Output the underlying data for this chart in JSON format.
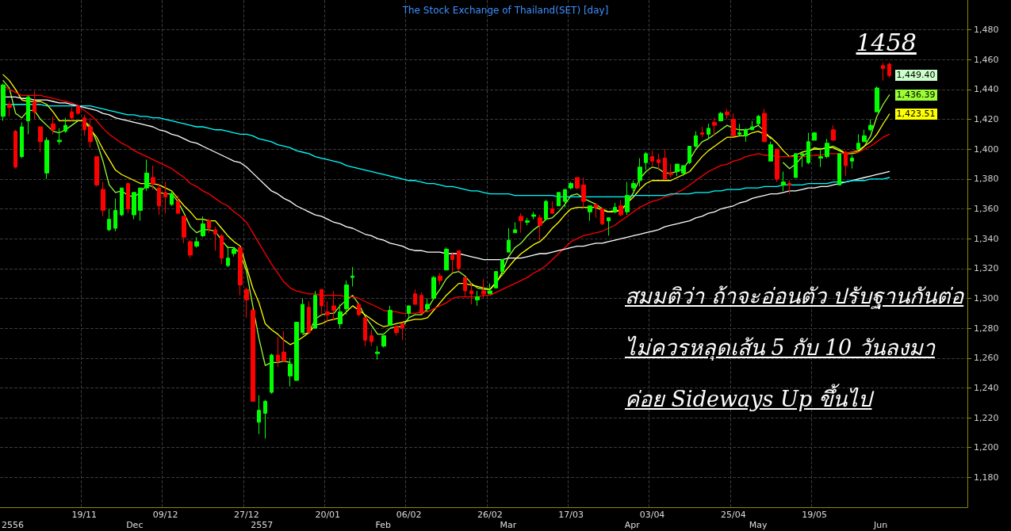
{
  "chart_data": {
    "type": "candlestick",
    "title": "The Stock Exchange of Thailand(SET) [day]",
    "categories": [
      null,
      null,
      null,
      null,
      null,
      null,
      null,
      null,
      null,
      null,
      null,
      null,
      null,
      "19/11",
      null,
      null,
      null,
      null,
      null,
      null,
      null,
      null,
      null,
      null,
      null,
      null,
      "09/12",
      null,
      null,
      null,
      null,
      null,
      null,
      null,
      null,
      null,
      null,
      null,
      null,
      "27/12",
      null,
      null,
      null,
      null,
      null,
      null,
      null,
      null,
      null,
      null,
      null,
      null,
      "20/01",
      null,
      null,
      null,
      null,
      null,
      null,
      null,
      null,
      null,
      null,
      null,
      null,
      "06/02",
      null,
      null,
      null,
      null,
      null,
      null,
      null,
      null,
      null,
      null,
      null,
      null,
      "26/02",
      null,
      null,
      null,
      null,
      null,
      null,
      null,
      null,
      null,
      null,
      null,
      null,
      "17/03",
      null,
      null,
      null,
      null,
      null,
      null,
      null,
      null,
      null,
      null,
      null,
      null,
      "03/04",
      null,
      null,
      null,
      null,
      null,
      null,
      null,
      null,
      null,
      null,
      null,
      null,
      "25/04",
      null,
      null,
      null,
      null,
      null,
      null,
      null,
      null,
      null,
      null,
      null,
      null,
      "19/05",
      null,
      null,
      null,
      null,
      null,
      null,
      null,
      null,
      null,
      null,
      null,
      null
    ],
    "ohlc": [
      [
        1422,
        1444,
        1419,
        1443
      ],
      [
        1430,
        1432,
        1422,
        1428
      ],
      [
        1412,
        1413,
        1387,
        1388
      ],
      [
        1395,
        1418,
        1394,
        1415
      ],
      [
        1419,
        1436,
        1410,
        1435
      ],
      [
        1432,
        1439,
        1420,
        1425
      ],
      [
        1415,
        1415,
        1398,
        1405
      ],
      [
        1384,
        1408,
        1380,
        1406
      ],
      [
        1417,
        1422,
        1410,
        1413
      ],
      [
        1405,
        1414,
        1403,
        1406
      ],
      [
        1412,
        1421,
        1411,
        1416
      ],
      [
        1425,
        1428,
        1419,
        1421
      ],
      [
        1429,
        1430,
        1423,
        1424
      ],
      [
        1421,
        1423,
        1409,
        1413
      ],
      [
        1415,
        1421,
        1401,
        1405
      ],
      [
        1395,
        1395,
        1375,
        1376
      ],
      [
        1373,
        1378,
        1355,
        1359
      ],
      [
        1346,
        1360,
        1345,
        1353
      ],
      [
        1347,
        1367,
        1345,
        1359
      ],
      [
        1356,
        1374,
        1355,
        1374
      ],
      [
        1377,
        1377,
        1357,
        1360
      ],
      [
        1356,
        1371,
        1353,
        1371
      ],
      [
        1359,
        1374,
        1352,
        1374
      ],
      [
        1374,
        1393,
        1372,
        1384
      ],
      [
        1381,
        1389,
        1373,
        1377
      ],
      [
        1374,
        1377,
        1356,
        1362
      ],
      [
        1371,
        1378,
        1357,
        1368
      ],
      [
        1363,
        1372,
        1362,
        1370
      ],
      [
        1365,
        1369,
        1357,
        1357
      ],
      [
        1355,
        1355,
        1337,
        1341
      ],
      [
        1338,
        1339,
        1327,
        1329
      ],
      [
        1335,
        1341,
        1334,
        1338
      ],
      [
        1342,
        1355,
        1341,
        1350
      ],
      [
        1352,
        1353,
        1344,
        1347
      ],
      [
        1346,
        1348,
        1332,
        1343
      ],
      [
        1342,
        1343,
        1323,
        1327
      ],
      [
        1322,
        1335,
        1321,
        1327
      ],
      [
        1330,
        1334,
        1328,
        1333
      ],
      [
        1334,
        1334,
        1302,
        1309
      ],
      [
        1306,
        1307,
        1287,
        1299
      ],
      [
        1292,
        1294,
        1231,
        1231
      ],
      [
        1217,
        1235,
        1209,
        1225
      ],
      [
        1223,
        1232,
        1206,
        1231
      ],
      [
        1237,
        1263,
        1236,
        1262
      ],
      [
        1262,
        1274,
        1254,
        1258
      ],
      [
        1264,
        1278,
        1258,
        1258
      ],
      [
        1248,
        1260,
        1241,
        1256
      ],
      [
        1245,
        1284,
        1245,
        1284
      ],
      [
        1277,
        1300,
        1277,
        1296
      ],
      [
        1294,
        1298,
        1277,
        1277
      ],
      [
        1280,
        1305,
        1280,
        1302
      ],
      [
        1306,
        1306,
        1288,
        1295
      ],
      [
        1291,
        1298,
        1284,
        1289
      ],
      [
        1295,
        1305,
        1285,
        1292
      ],
      [
        1283,
        1296,
        1280,
        1291
      ],
      [
        1293,
        1312,
        1289,
        1309
      ],
      [
        1314,
        1321,
        1308,
        1315
      ],
      [
        1296,
        1297,
        1288,
        1289
      ],
      [
        1287,
        1287,
        1268,
        1272
      ],
      [
        1275,
        1279,
        1268,
        1271
      ],
      [
        1263,
        1268,
        1259,
        1264
      ],
      [
        1268,
        1275,
        1267,
        1275
      ],
      [
        1282,
        1295,
        1282,
        1292
      ],
      [
        1281,
        1282,
        1275,
        1277
      ],
      [
        1283,
        1283,
        1272,
        1280
      ],
      [
        1290,
        1295,
        1286,
        1295
      ],
      [
        1303,
        1306,
        1296,
        1296
      ],
      [
        1302,
        1304,
        1290,
        1290
      ],
      [
        1293,
        1300,
        1291,
        1296
      ],
      [
        1300,
        1315,
        1300,
        1314
      ],
      [
        1315,
        1317,
        1309,
        1312
      ],
      [
        1319,
        1334,
        1319,
        1333
      ],
      [
        1329,
        1331,
        1317,
        1326
      ],
      [
        1332,
        1332,
        1318,
        1320
      ],
      [
        1314,
        1314,
        1301,
        1305
      ],
      [
        1305,
        1310,
        1296,
        1303
      ],
      [
        1299,
        1305,
        1295,
        1301
      ],
      [
        1305,
        1313,
        1300,
        1303
      ],
      [
        1303,
        1310,
        1303,
        1305
      ],
      [
        1307,
        1318,
        1307,
        1318
      ],
      [
        1318,
        1326,
        1315,
        1326
      ],
      [
        1331,
        1347,
        1331,
        1339
      ],
      [
        1344,
        1351,
        1344,
        1346
      ],
      [
        1355,
        1357,
        1344,
        1352
      ],
      [
        1351,
        1354,
        1349,
        1352
      ],
      [
        1355,
        1358,
        1353,
        1356
      ],
      [
        1354,
        1356,
        1339,
        1349
      ],
      [
        1353,
        1366,
        1353,
        1365
      ],
      [
        1360,
        1365,
        1357,
        1357
      ],
      [
        1362,
        1371,
        1362,
        1371
      ],
      [
        1365,
        1373,
        1361,
        1373
      ],
      [
        1374,
        1378,
        1373,
        1377
      ],
      [
        1381,
        1381,
        1373,
        1374
      ],
      [
        1376,
        1381,
        1361,
        1365
      ],
      [
        1358,
        1362,
        1352,
        1362
      ],
      [
        1363,
        1364,
        1354,
        1361
      ],
      [
        1360,
        1361,
        1349,
        1350
      ],
      [
        1352,
        1354,
        1342,
        1354
      ],
      [
        1358,
        1364,
        1357,
        1361
      ],
      [
        1362,
        1366,
        1355,
        1356
      ],
      [
        1358,
        1378,
        1356,
        1369
      ],
      [
        1374,
        1379,
        1372,
        1377
      ],
      [
        1379,
        1394,
        1375,
        1388
      ],
      [
        1391,
        1398,
        1386,
        1397
      ],
      [
        1395,
        1399,
        1388,
        1392
      ],
      [
        1393,
        1397,
        1386,
        1391
      ],
      [
        1394,
        1400,
        1380,
        1380
      ],
      [
        1384,
        1390,
        1381,
        1383
      ],
      [
        1385,
        1390,
        1382,
        1390
      ],
      [
        1384,
        1389,
        1382,
        1389
      ],
      [
        1391,
        1402,
        1390,
        1402
      ],
      [
        1402,
        1412,
        1401,
        1409
      ],
      [
        1411,
        1415,
        1408,
        1410
      ],
      [
        1410,
        1417,
        1407,
        1414
      ],
      [
        1418,
        1421,
        1409,
        1416
      ],
      [
        1419,
        1425,
        1419,
        1424
      ],
      [
        1425,
        1427,
        1420,
        1423
      ],
      [
        1420,
        1424,
        1409,
        1409
      ],
      [
        1410,
        1417,
        1409,
        1411
      ],
      [
        1409,
        1414,
        1405,
        1413
      ],
      [
        1413,
        1419,
        1413,
        1415
      ],
      [
        1417,
        1423,
        1416,
        1422
      ],
      [
        1424,
        1427,
        1405,
        1405
      ],
      [
        1392,
        1405,
        1392,
        1403
      ],
      [
        1400,
        1400,
        1378,
        1380
      ],
      [
        1376,
        1385,
        1372,
        1378
      ],
      [
        1377,
        1379,
        1370,
        1376
      ],
      [
        1381,
        1397,
        1381,
        1397
      ],
      [
        1396,
        1398,
        1388,
        1397
      ],
      [
        1391,
        1411,
        1390,
        1405
      ],
      [
        1406,
        1411,
        1406,
        1411
      ],
      [
        1394,
        1401,
        1388,
        1395
      ],
      [
        1395,
        1407,
        1394,
        1404
      ],
      [
        1413,
        1416,
        1406,
        1406
      ],
      [
        1376,
        1397,
        1376,
        1397
      ],
      [
        1398,
        1399,
        1382,
        1389
      ],
      [
        1392,
        1396,
        1387,
        1394
      ],
      [
        1400,
        1410,
        1400,
        1404
      ],
      [
        1405,
        1413,
        1405,
        1409
      ],
      [
        1413,
        1420,
        1412,
        1416
      ],
      [
        1425,
        1442,
        1425,
        1441
      ],
      [
        1456,
        1458,
        1446,
        1454
      ],
      [
        1457,
        1458,
        1448,
        1449.4
      ]
    ],
    "value_labels": [
      null,
      null,
      null,
      null,
      null,
      null,
      null,
      null,
      null,
      null,
      null,
      null,
      null,
      null,
      null,
      null,
      null,
      null,
      null,
      null,
      null,
      null,
      null,
      null,
      null,
      null,
      null,
      null,
      null,
      null,
      null,
      null,
      null,
      null,
      null,
      null,
      null,
      null,
      null,
      null,
      null,
      null,
      null,
      null,
      null,
      null,
      null,
      null,
      null,
      null,
      null,
      null,
      null,
      null,
      null,
      null,
      null,
      null,
      null,
      null,
      null,
      null,
      null,
      null,
      null,
      null,
      null,
      null,
      null,
      null,
      null,
      null,
      null,
      null,
      null,
      null,
      null,
      null,
      null,
      null,
      null,
      null,
      null,
      null,
      null,
      null,
      null,
      null,
      null,
      null,
      null,
      null,
      null,
      null,
      null,
      null,
      null,
      null,
      null,
      null,
      null,
      null,
      null,
      null,
      null,
      null,
      null,
      null,
      null,
      null,
      null,
      null,
      null,
      null,
      null,
      null,
      null,
      null,
      null,
      null,
      null,
      null,
      null,
      null,
      null,
      null,
      null,
      null,
      null,
      null,
      null,
      null,
      null,
      null,
      null,
      null,
      null,
      null,
      null,
      null,
      null,
      null,
      "1,449.40"
    ],
    "series": [
      {
        "type": "line",
        "color": "#99ff33",
        "values": [
          1446,
          1441,
          1424,
          1421,
          1426,
          1426,
          1420,
          1416,
          1412,
          1411,
          1413,
          1416,
          1419,
          1419,
          1415,
          1405,
          1392,
          1376,
          1371,
          1372,
          1369,
          1368,
          1371,
          1376,
          1375,
          1371,
          1370,
          1370,
          1365,
          1357,
          1348,
          1344,
          1346,
          1346,
          1345,
          1339,
          1334,
          1334,
          1330,
          1318,
          1295,
          1273,
          1255,
          1257,
          1257,
          1258,
          1257,
          null,
          1276,
          1277,
          1286,
          1289,
          1290,
          1290,
          1295,
          1299,
          1302,
          1296,
          1288,
          1282,
          1276,
          1276,
          1280,
          1281,
          1281,
          1287,
          1289,
          1289,
          1293,
          1300,
          1306,
          1313,
          1317,
          1318,
          1315,
          1310,
          1307,
          1306,
          1306,
          1310,
          1318,
          1328,
          1334,
          1337,
          1342,
          1346,
          1349,
          1353,
          1354,
          1358,
          1363,
          1369,
          1370,
          1367,
          1365,
          1363,
          1360,
          1358,
          1359,
          1359,
          1364,
          1371,
          1380,
          1385,
          1388,
          1387,
          1384,
          1384,
          1385,
          1387,
          1393,
          1400,
          1405,
          1407,
          1410,
          1413,
          1416,
          1414,
          1413,
          1413,
          1414,
          1416,
          1412,
          1407,
          null,
          1391,
          1387,
          1390,
          1395,
          1398,
          1401,
          1400,
          1401,
          1402,
          1400,
          1397,
          1397,
          1398,
          1402,
          1409,
          1422,
          1430,
          1436.39
        ],
        "value_labels": [
          null,
          null,
          null,
          null,
          null,
          null,
          null,
          null,
          null,
          null,
          null,
          null,
          null,
          null,
          null,
          null,
          null,
          null,
          null,
          null,
          null,
          null,
          null,
          null,
          null,
          null,
          null,
          null,
          null,
          null,
          null,
          null,
          null,
          null,
          null,
          null,
          null,
          null,
          null,
          null,
          null,
          null,
          null,
          null,
          null,
          null,
          null,
          null,
          null,
          null,
          null,
          null,
          null,
          null,
          null,
          null,
          null,
          null,
          null,
          null,
          null,
          null,
          null,
          null,
          null,
          null,
          null,
          null,
          null,
          null,
          null,
          null,
          null,
          null,
          null,
          null,
          null,
          null,
          null,
          null,
          null,
          null,
          null,
          null,
          null,
          null,
          null,
          null,
          null,
          null,
          null,
          null,
          null,
          null,
          null,
          null,
          null,
          null,
          null,
          null,
          null,
          null,
          null,
          null,
          null,
          null,
          null,
          null,
          null,
          null,
          null,
          null,
          null,
          null,
          null,
          null,
          null,
          null,
          null,
          null,
          null,
          null,
          null,
          null,
          null,
          null,
          null,
          null,
          null,
          null,
          null,
          null,
          null,
          null,
          null,
          null,
          null,
          null,
          null,
          null,
          null,
          null,
          "1,436.39"
        ]
      },
      {
        "type": "line",
        "color": "#ffff00",
        "values": [
          1450,
          1446,
          1440,
          1433,
          1432,
          1432,
          1432,
          1430,
          1425,
          1419,
          1419,
          1419,
          1419,
          1419,
          1413,
          1408,
          1400,
          1393,
          1386,
          1383,
          1381,
          1379,
          1377,
          1377,
          1377,
          1376,
          1374,
          1372,
          1367,
          1362,
          1358,
          1353,
          1353,
          1352,
          1352,
          1347,
          1342,
          1338,
          1335,
          1321,
          1307,
          1297,
          1283,
          1279,
          1276,
          1272,
          1269,
          1271,
          1274,
          1277,
          1282,
          1283,
          1285,
          1286,
          1287,
          1291,
          1295,
          1292,
          1289,
          1286,
          1283,
          1281,
          1282,
          1283,
          1284,
          1285,
          1286,
          1286,
          1287,
          1292,
          1297,
          1302,
          1306,
          1310,
          1310,
          1309,
          1308,
          1307,
          1306,
          1311,
          1316,
          1321,
          1326,
          1330,
          1333,
          1336,
          1338,
          1342,
          1347,
          1351,
          1356,
          1360,
          1361,
          1361,
          1361,
          1361,
          1359,
          1358,
          1358,
          1359,
          1364,
          1368,
          1373,
          1377,
          1379,
          1379,
          1379,
          1379,
          1381,
          1383,
          1385,
          1390,
          1395,
          1399,
          1402,
          1405,
          1408,
          1408,
          1409,
          1409,
          1411,
          1412,
          1410,
          1408,
          1404,
          1399,
          1395,
          1396,
          1398,
          1399,
          1400,
          1400,
          1401,
          1401,
          1399,
          1397,
          1398,
          1399,
          1402,
          1405,
          1410,
          1417,
          1423.51
        ],
        "value_labels": [
          null,
          null,
          null,
          null,
          null,
          null,
          null,
          null,
          null,
          null,
          null,
          null,
          null,
          null,
          null,
          null,
          null,
          null,
          null,
          null,
          null,
          null,
          null,
          null,
          null,
          null,
          null,
          null,
          null,
          null,
          null,
          null,
          null,
          null,
          null,
          null,
          null,
          null,
          null,
          null,
          null,
          null,
          null,
          null,
          null,
          null,
          null,
          null,
          null,
          null,
          null,
          null,
          null,
          null,
          null,
          null,
          null,
          null,
          null,
          null,
          null,
          null,
          null,
          null,
          null,
          null,
          null,
          null,
          null,
          null,
          null,
          null,
          null,
          null,
          null,
          null,
          null,
          null,
          null,
          null,
          null,
          null,
          null,
          null,
          null,
          null,
          null,
          null,
          null,
          null,
          null,
          null,
          null,
          null,
          null,
          null,
          null,
          null,
          null,
          null,
          null,
          null,
          null,
          null,
          null,
          null,
          null,
          null,
          null,
          null,
          null,
          null,
          null,
          null,
          null,
          null,
          null,
          null,
          null,
          null,
          null,
          null,
          null,
          null,
          null,
          null,
          null,
          null,
          null,
          null,
          null,
          null,
          null,
          null,
          null,
          null,
          null,
          null,
          null,
          null,
          null,
          null,
          "1,423.51"
        ]
      },
      {
        "type": "line",
        "color": "#ff0000",
        "values": [
          1443,
          1440,
          1438,
          1436,
          1436,
          1436,
          1436,
          1435,
          1434,
          1433,
          1432,
          1431,
          1429,
          1426,
          1423,
          1419,
          1414,
          1410,
          1407,
          1404,
          1402,
          1399,
          1397,
          1395,
          1393,
          1391,
          1389,
          1387,
          1384,
          1381,
          1377,
          1375,
          1372,
          1370,
          1367,
          1364,
          1362,
          1358,
          1355,
          1351,
          1344,
          1337,
          1330,
          1323,
          1317,
          1311,
          1307,
          1305,
          1304,
          1303,
          1303,
          1302,
          1302,
          1302,
          1302,
          1301,
          1301,
          1300,
          1298,
          1296,
          1294,
          1292,
          1291,
          1291,
          1290,
          1290,
          1290,
          1291,
          1291,
          1293,
          1295,
          1297,
          1300,
          1301,
          1301,
          1301,
          1301,
          1302,
          1302,
          1304,
          1306,
          1308,
          1310,
          1312,
          1314,
          1317,
          1319,
          1322,
          1326,
          1330,
          1334,
          1338,
          1340,
          1342,
          1343,
          1344,
          1345,
          1347,
          1349,
          1352,
          1355,
          1358,
          1361,
          1363,
          1365,
          1366,
          1368,
          1369,
          1371,
          1373,
          1376,
          1379,
          1382,
          1385,
          1387,
          1389,
          1390,
          1392,
          1393,
          1395,
          1396,
          1397,
          1396,
          1396,
          1395,
          1395,
          1395,
          1395,
          1395,
          1395,
          1396,
          1396,
          1397,
          1397,
          1397,
          1397,
          1398,
          1398,
          1400,
          1402,
          1405,
          1408,
          1410
        ]
      },
      {
        "type": "line",
        "color": "#ffffff",
        "values": [
          1435,
          1435,
          1435,
          1434,
          1434,
          1433,
          1433,
          1433,
          1432,
          1431,
          1431,
          1430,
          1429,
          1428,
          1427,
          1426,
          1424,
          1423,
          1421,
          1420,
          1419,
          1418,
          1417,
          1416,
          1415,
          1413,
          1412,
          1410,
          1409,
          1407,
          1405,
          1404,
          1402,
          1400,
          1398,
          1396,
          1394,
          1392,
          1391,
          1388,
          1384,
          1380,
          1376,
          1372,
          1370,
          1367,
          1365,
          1362,
          1360,
          1358,
          1356,
          1355,
          1353,
          1351,
          1350,
          1348,
          1347,
          1345,
          1343,
          1342,
          1340,
          1339,
          1337,
          1336,
          1335,
          1333,
          1332,
          1332,
          1331,
          1331,
          1331,
          1330,
          1330,
          1330,
          1329,
          1328,
          1327,
          1326,
          1326,
          1326,
          1326,
          1327,
          1327,
          1327,
          1328,
          1329,
          1330,
          1330,
          1331,
          1332,
          1333,
          1334,
          1335,
          1335,
          1336,
          1337,
          1337,
          1338,
          1339,
          1340,
          1341,
          1342,
          1343,
          1344,
          1345,
          1346,
          1348,
          1349,
          1350,
          1351,
          1352,
          1354,
          1355,
          1357,
          1358,
          1360,
          1361,
          1362,
          1364,
          1365,
          1367,
          1368,
          1369,
          1370,
          1370,
          1371,
          1372,
          1372,
          1373,
          1374,
          1374,
          1375,
          1375,
          1376,
          1377,
          1378,
          1379,
          1380,
          1381,
          1382,
          1383,
          1384,
          1385
        ]
      },
      {
        "type": "line",
        "color": "#00ffff",
        "values": [
          1430,
          1430,
          1430,
          1430,
          1430,
          1430,
          1430,
          1429,
          1429,
          1429,
          1429,
          1429,
          1429,
          1429,
          1429,
          1428,
          1427,
          1426,
          1425,
          1424,
          1423,
          1423,
          1422,
          1422,
          1421,
          1421,
          1420,
          1419,
          1418,
          1417,
          1416,
          1415,
          1415,
          1414,
          1413,
          1413,
          1412,
          1411,
          1410,
          1410,
          1409,
          1407,
          1406,
          1405,
          1403,
          1402,
          1401,
          1399,
          1398,
          1397,
          1395,
          1394,
          1393,
          1392,
          1391,
          1389,
          1388,
          1387,
          1386,
          1385,
          1384,
          1383,
          1382,
          1381,
          1380,
          1379,
          1379,
          1378,
          1377,
          1377,
          1376,
          1375,
          1375,
          1374,
          1373,
          1372,
          1372,
          1371,
          1370,
          1370,
          1370,
          1370,
          1369,
          1369,
          1369,
          1369,
          1369,
          1369,
          1369,
          1368,
          1368,
          1368,
          1368,
          1368,
          1368,
          1368,
          1368,
          1368,
          1368,
          1368,
          1368,
          1369,
          1369,
          1369,
          1369,
          1369,
          1369,
          1370,
          1370,
          1370,
          1370,
          1371,
          1371,
          1371,
          1372,
          1372,
          1373,
          1373,
          1373,
          1374,
          1374,
          1374,
          1375,
          1375,
          1375,
          1376,
          1376,
          1376,
          1376,
          1377,
          1377,
          1377,
          1377,
          1378,
          1378,
          1378,
          1379,
          1379,
          1379,
          1380,
          1380,
          1380,
          1381
        ]
      }
    ],
    "ylim": [
      1160,
      1500
    ],
    "yticks": [
      {
        "value": 1180,
        "label": "1,180"
      },
      {
        "value": 1200,
        "label": "1,200"
      },
      {
        "value": 1220,
        "label": "1,220"
      },
      {
        "value": 1240,
        "label": "1,240"
      },
      {
        "value": 1260,
        "label": "1,260"
      },
      {
        "value": 1280,
        "label": "1,280"
      },
      {
        "value": 1300,
        "label": "1,300"
      },
      {
        "value": 1320,
        "label": "1,320"
      },
      {
        "value": 1340,
        "label": "1,340"
      },
      {
        "value": 1360,
        "label": "1,360"
      },
      {
        "value": 1380,
        "label": "1,380"
      },
      {
        "value": 1400,
        "label": "1,400"
      },
      {
        "value": 1420,
        "label": "1,420"
      },
      {
        "value": 1440,
        "label": "1,440"
      },
      {
        "value": 1460,
        "label": "1,460"
      },
      {
        "value": 1480,
        "label": "1,480"
      }
    ],
    "grid": true,
    "annotations": [
      {
        "text": "1458",
        "y": 1458
      },
      "สมมติว่า ถ้าจะอ่อนตัว ปรับฐานกันต่อ",
      "ไม่ควรหลุดเส้น 5 กับ 10 วันลงมา",
      "ค่อย Sideways Up ขึ้นไป",
      {
        "text": "2556"
      },
      {
        "text": "Dec"
      },
      {
        "text": "2557"
      },
      {
        "text": "Feb"
      },
      {
        "text": "Mar"
      },
      {
        "text": "Apr"
      },
      {
        "text": "May"
      },
      {
        "text": "Jun"
      }
    ]
  }
}
